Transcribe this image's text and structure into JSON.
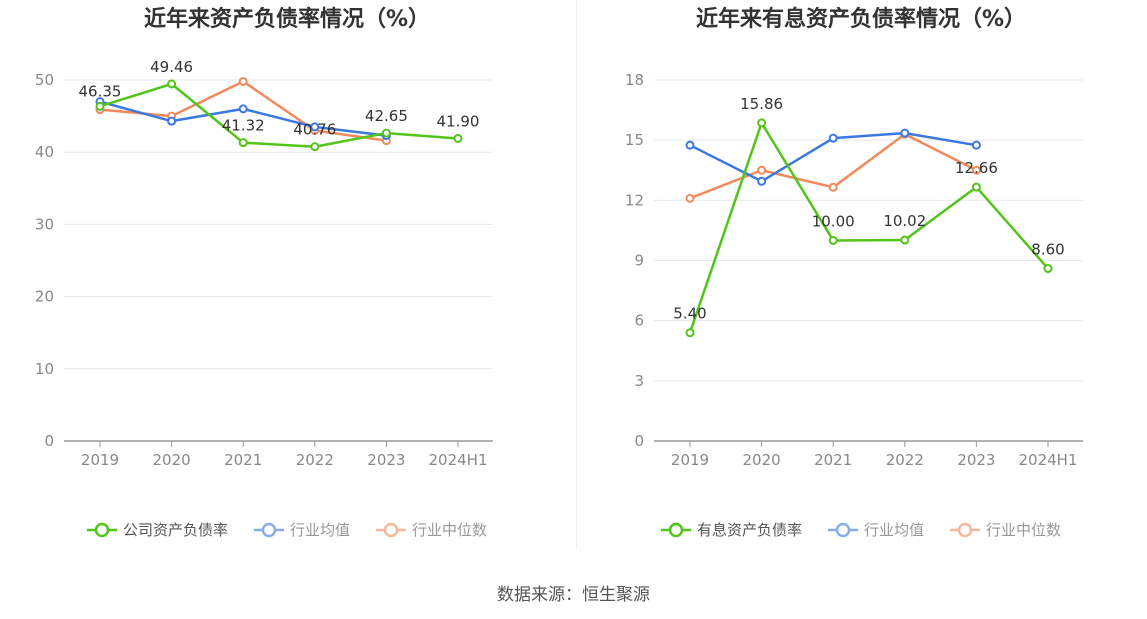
{
  "source_text": "数据来源：恒生聚源",
  "chart_data": [
    {
      "type": "line",
      "title": "近年来资产负债率情况（%）",
      "categories": [
        "2019",
        "2020",
        "2021",
        "2022",
        "2023",
        "2024H1"
      ],
      "ylim": [
        0,
        50
      ],
      "yticks": [
        0,
        10,
        20,
        30,
        40,
        50
      ],
      "grid": true,
      "legend_position": "bottom",
      "series": [
        {
          "name": "公司资产负债率",
          "color": "#52c41a",
          "values": [
            46.35,
            49.46,
            41.32,
            40.76,
            42.65,
            41.9
          ],
          "labels": [
            "46.35",
            "49.46",
            "41.32",
            "40.76",
            "42.65",
            "41.90"
          ]
        },
        {
          "name": "行业均值",
          "color": "#3b78e0",
          "values": [
            47.0,
            44.3,
            46.0,
            43.5,
            42.3,
            null
          ]
        },
        {
          "name": "行业中位数",
          "color": "#f08a5d",
          "values": [
            45.9,
            45.0,
            49.8,
            43.0,
            41.6,
            null
          ]
        }
      ]
    },
    {
      "type": "line",
      "title": "近年来有息资产负债率情况（%）",
      "categories": [
        "2019",
        "2020",
        "2021",
        "2022",
        "2023",
        "2024H1"
      ],
      "ylim": [
        0,
        18
      ],
      "yticks": [
        0,
        3,
        6,
        9,
        12,
        15,
        18
      ],
      "grid": true,
      "legend_position": "bottom",
      "series": [
        {
          "name": "有息资产负债率",
          "color": "#52c41a",
          "values": [
            5.4,
            15.86,
            10.0,
            10.02,
            12.66,
            8.6
          ],
          "labels": [
            "5.40",
            "15.86",
            "10.00",
            "10.02",
            "12.66",
            "8.60"
          ]
        },
        {
          "name": "行业均值",
          "color": "#3b78e0",
          "values": [
            14.75,
            12.95,
            15.1,
            15.35,
            14.75,
            null
          ]
        },
        {
          "name": "行业中位数",
          "color": "#f08a5d",
          "values": [
            12.1,
            13.5,
            12.65,
            15.3,
            13.5,
            null
          ]
        }
      ]
    }
  ]
}
